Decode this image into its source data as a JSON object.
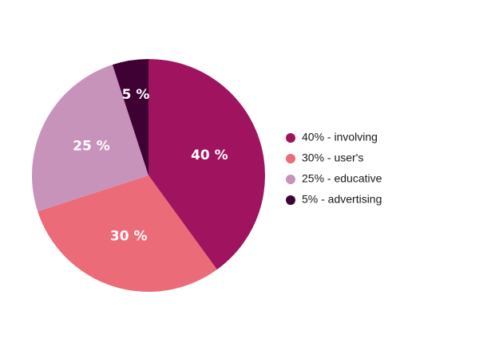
{
  "chart_data": {
    "type": "pie",
    "start_angle_deg": 0,
    "direction": "clockwise",
    "legend_position": "right",
    "slices": [
      {
        "value": 40,
        "label": "40 %",
        "legend": "40% - involving",
        "color": "#a0145f"
      },
      {
        "value": 30,
        "label": "30 %",
        "legend": "30% - user's",
        "color": "#ec6b78"
      },
      {
        "value": 25,
        "label": "25 %",
        "legend": "25% - educative",
        "color": "#c893bb"
      },
      {
        "value": 5,
        "label": "5 %",
        "legend": "5% - advertising",
        "color": "#3f0034"
      }
    ]
  }
}
